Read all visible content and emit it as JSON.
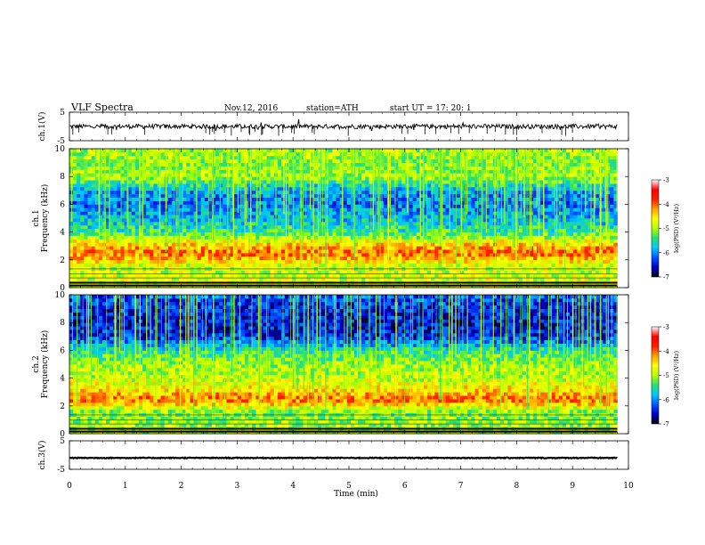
{
  "header": {
    "title": "VLF  Spectra",
    "date": "Nov.12, 2016",
    "station": "station=ATH",
    "start": "start  UT  =    17: 20: 1"
  },
  "colorbar": {
    "label": "log(PSD) (V²/Hz)",
    "ticks": [
      "-3",
      "-4",
      "-5",
      "-6",
      "-7"
    ],
    "stops": [
      "#000000",
      "#0000c8",
      "#0055ff",
      "#00c8ff",
      "#28e070",
      "#b4ff00",
      "#ffff00",
      "#ffa000",
      "#ff1e00",
      "#ff0000",
      "#ffffff"
    ]
  },
  "chart_data": [
    {
      "type": "line",
      "name": "ch1-waveform",
      "ylabel": "ch.1(V)",
      "ylim": [
        -5,
        5
      ],
      "yticks": [
        "5",
        "-5"
      ],
      "xlim": [
        0,
        10
      ],
      "approx_level": 0,
      "approx_amplitude": 0.8
    },
    {
      "type": "heatmap",
      "name": "ch1-spectrogram",
      "ylabel": "ch.1\nFrequency  (kHz)",
      "ylim": [
        0,
        10
      ],
      "yticks": [
        "0",
        "2",
        "4",
        "6",
        "8",
        "10"
      ],
      "xlim": [
        0,
        10
      ],
      "data_end_min": 9.8,
      "profile_logPSD": [
        {
          "kHz": 0.5,
          "v": -4.8
        },
        {
          "kHz": 1.5,
          "v": -4.9
        },
        {
          "kHz": 2.5,
          "v": -4.0
        },
        {
          "kHz": 3.0,
          "v": -4.3
        },
        {
          "kHz": 4.0,
          "v": -5.4
        },
        {
          "kHz": 5.0,
          "v": -5.8
        },
        {
          "kHz": 6.0,
          "v": -6.1
        },
        {
          "kHz": 7.0,
          "v": -5.9
        },
        {
          "kHz": 8.0,
          "v": -5.0
        },
        {
          "kHz": 9.0,
          "v": -5.1
        },
        {
          "kHz": 10.0,
          "v": -5.0
        }
      ]
    },
    {
      "type": "heatmap",
      "name": "ch2-spectrogram",
      "ylabel": "ch.2\nFrequency  (kHz)",
      "ylim": [
        0,
        10
      ],
      "yticks": [
        "0",
        "2",
        "4",
        "6",
        "8",
        "10"
      ],
      "xlim": [
        0,
        10
      ],
      "data_end_min": 9.8,
      "profile_logPSD": [
        {
          "kHz": 0.5,
          "v": -5.0
        },
        {
          "kHz": 1.5,
          "v": -5.2
        },
        {
          "kHz": 2.5,
          "v": -4.0
        },
        {
          "kHz": 3.0,
          "v": -4.4
        },
        {
          "kHz": 4.0,
          "v": -4.9
        },
        {
          "kHz": 5.0,
          "v": -5.0
        },
        {
          "kHz": 6.0,
          "v": -5.5
        },
        {
          "kHz": 7.0,
          "v": -6.4
        },
        {
          "kHz": 8.0,
          "v": -6.5
        },
        {
          "kHz": 9.0,
          "v": -6.4
        },
        {
          "kHz": 10.0,
          "v": -6.2
        }
      ]
    },
    {
      "type": "line",
      "name": "ch3-waveform",
      "ylabel": "ch.3(V)",
      "ylim": [
        -5,
        5
      ],
      "yticks": [
        "5",
        "-5"
      ],
      "xlim": [
        0,
        10
      ],
      "approx_level": -1,
      "approx_amplitude": 0.15
    }
  ],
  "xaxis": {
    "label": "Time  (min)",
    "ticks": [
      "0",
      "1",
      "2",
      "3",
      "4",
      "5",
      "6",
      "7",
      "8",
      "9",
      "10"
    ]
  }
}
